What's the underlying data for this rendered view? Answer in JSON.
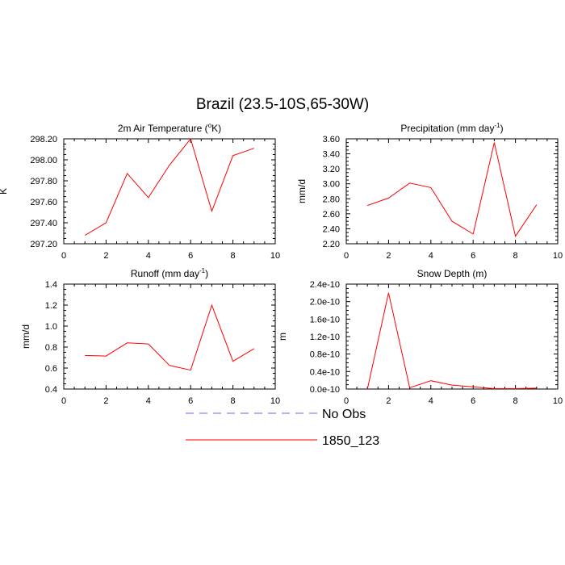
{
  "figure_title": "Brazil (23.5-10S,65-30W)",
  "legend": [
    {
      "label": "No Obs",
      "color": "#6060ff",
      "style": "dashed"
    },
    {
      "label": "1850_123",
      "color": "#ff0000",
      "style": "solid"
    }
  ],
  "chart_data": [
    {
      "type": "line",
      "title": "2m Air Temperature (",
      "title_sup": "o",
      "title_after": "K)",
      "xlabel": "",
      "ylabel": "K",
      "xlim": [
        0,
        10
      ],
      "ylim": [
        297.2,
        298.2
      ],
      "xticks": [
        0,
        2,
        4,
        6,
        8,
        10
      ],
      "xtick_labels": [
        "0",
        "2",
        "4",
        "6",
        "8",
        "10"
      ],
      "yticks": [
        297.2,
        297.4,
        297.6,
        297.8,
        298.0,
        298.2
      ],
      "ytick_labels": [
        "297.20",
        "297.40",
        "297.60",
        "297.80",
        "298.00",
        "298.20"
      ],
      "x": [
        1,
        2,
        3,
        4,
        5,
        6,
        7,
        8,
        9
      ],
      "series": [
        {
          "name": "1850_123",
          "color": "#ff0000",
          "values": [
            297.28,
            297.4,
            297.87,
            297.64,
            297.95,
            298.2,
            297.51,
            298.04,
            298.11
          ]
        }
      ],
      "grid": false
    },
    {
      "type": "line",
      "title": "Precipitation (mm day",
      "title_sup": "-1",
      "title_after": ")",
      "xlabel": "",
      "ylabel": "mm/d",
      "xlim": [
        0,
        10
      ],
      "ylim": [
        2.2,
        3.6
      ],
      "xticks": [
        0,
        2,
        4,
        6,
        8,
        10
      ],
      "xtick_labels": [
        "0",
        "2",
        "4",
        "6",
        "8",
        "10"
      ],
      "yticks": [
        2.2,
        2.4,
        2.6,
        2.8,
        3.0,
        3.2,
        3.4,
        3.6
      ],
      "ytick_labels": [
        "2.20",
        "2.40",
        "2.60",
        "2.80",
        "3.00",
        "3.20",
        "3.40",
        "3.60"
      ],
      "x": [
        1,
        2,
        3,
        4,
        5,
        6,
        7,
        8,
        9
      ],
      "series": [
        {
          "name": "1850_123",
          "color": "#ff0000",
          "values": [
            2.71,
            2.81,
            3.01,
            2.95,
            2.5,
            2.33,
            3.55,
            2.3,
            2.72
          ]
        }
      ],
      "grid": false
    },
    {
      "type": "line",
      "title": "Runoff (mm day",
      "title_sup": "-1",
      "title_after": ")",
      "xlabel": "",
      "ylabel": "mm/d",
      "xlim": [
        0,
        10
      ],
      "ylim": [
        0.4,
        1.4
      ],
      "xticks": [
        0,
        2,
        4,
        6,
        8,
        10
      ],
      "xtick_labels": [
        "0",
        "2",
        "4",
        "6",
        "8",
        "10"
      ],
      "yticks": [
        0.4,
        0.6,
        0.8,
        1.0,
        1.2,
        1.4
      ],
      "ytick_labels": [
        "0.4",
        "0.6",
        "0.8",
        "1.0",
        "1.2",
        "1.4"
      ],
      "x": [
        1,
        2,
        3,
        4,
        5,
        6,
        7,
        8,
        9
      ],
      "series": [
        {
          "name": "1850_123",
          "color": "#ff0000",
          "values": [
            0.72,
            0.715,
            0.84,
            0.83,
            0.625,
            0.58,
            1.2,
            0.665,
            0.785
          ]
        }
      ],
      "grid": false
    },
    {
      "type": "line",
      "title": "Snow Depth (m)",
      "title_sup": "",
      "title_after": "",
      "xlabel": "",
      "ylabel": "m",
      "xlim": [
        0,
        10
      ],
      "ylim": [
        0,
        2.4e-10
      ],
      "xticks": [
        0,
        2,
        4,
        6,
        8,
        10
      ],
      "xtick_labels": [
        "0",
        "2",
        "4",
        "6",
        "8",
        "10"
      ],
      "yticks": [
        0,
        4e-11,
        8e-11,
        1.2e-10,
        1.6e-10,
        2e-10,
        2.4e-10
      ],
      "ytick_labels": [
        "0.0e-10",
        "0.4e-10",
        "0.8e-10",
        "1.2e-10",
        "1.6e-10",
        "2.0e-10",
        "2.4e-10"
      ],
      "x": [
        1,
        2,
        3,
        4,
        5,
        6,
        7,
        8,
        9
      ],
      "series": [
        {
          "name": "1850_123",
          "color": "#ff0000",
          "values": [
            0,
            2.2e-10,
            3e-12,
            1.9e-11,
            9e-12,
            5e-12,
            1e-12,
            1e-12,
            2e-12
          ]
        }
      ],
      "grid": false
    }
  ]
}
